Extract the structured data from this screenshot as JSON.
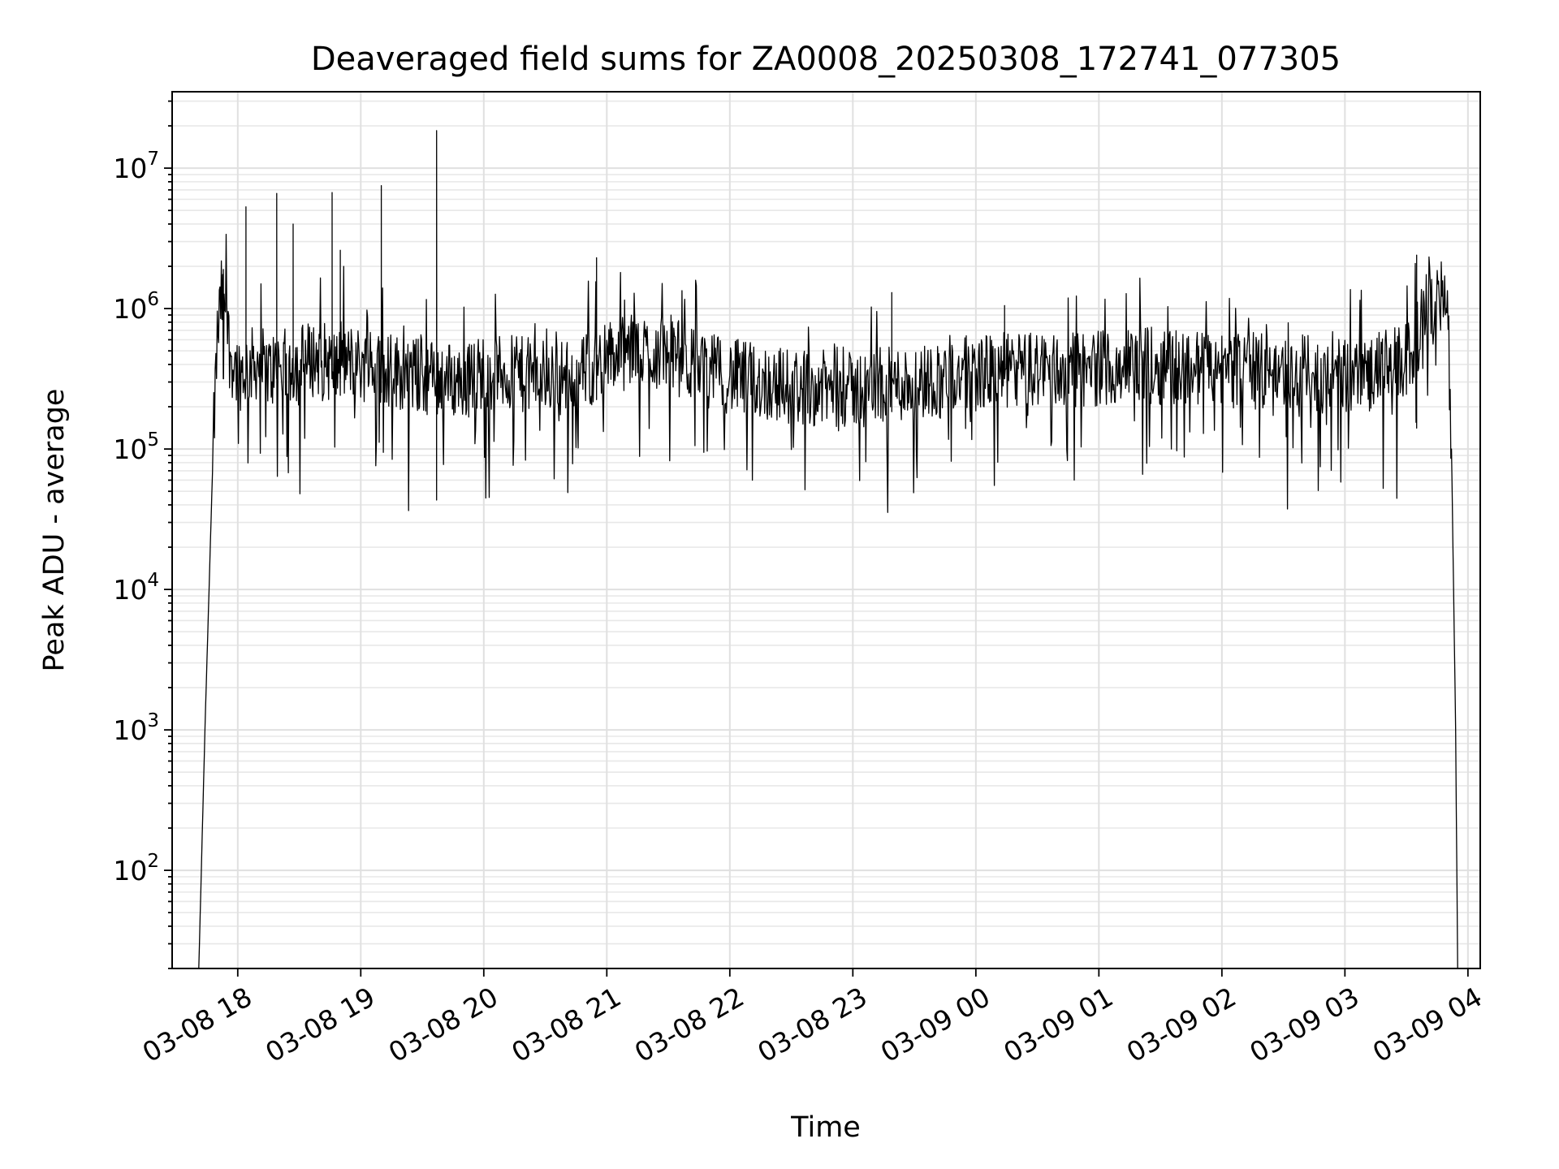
{
  "chart_data": {
    "type": "line",
    "title": "Deaveraged field sums for ZA0008_20250308_172741_077305",
    "xlabel": "Time",
    "ylabel": "Peak ADU - average",
    "x_scale": "time",
    "y_scale": "log",
    "xlim": [
      "2025-03-08 17:28",
      "2025-03-09 04:06"
    ],
    "ylim": [
      20,
      35000000
    ],
    "grid": true,
    "x_ticks": [
      "03-08 18",
      "03-08 19",
      "03-08 20",
      "03-08 21",
      "03-08 22",
      "03-08 23",
      "03-09 00",
      "03-09 01",
      "03-09 02",
      "03-09 03",
      "03-09 04"
    ],
    "y_ticks": [
      {
        "base": "10",
        "exp": "2",
        "value": 100
      },
      {
        "base": "10",
        "exp": "3",
        "value": 1000
      },
      {
        "base": "10",
        "exp": "4",
        "value": 10000
      },
      {
        "base": "10",
        "exp": "5",
        "value": 100000
      },
      {
        "base": "10",
        "exp": "6",
        "value": 1000000
      },
      {
        "base": "10",
        "exp": "7",
        "value": 10000000
      }
    ],
    "series": [
      {
        "color": "#000000",
        "x": [
          "2025-03-08 17:41",
          "2025-03-08 17:44",
          "2025-03-08 17:46",
          "2025-03-08 17:48",
          "2025-03-08 17:50",
          "2025-03-08 17:52",
          "2025-03-08 17:54",
          "2025-03-08 17:56",
          "2025-03-08 17:58",
          "2025-03-08 18:01",
          "2025-03-08 18:05",
          "2025-03-08 18:10",
          "2025-03-08 18:15",
          "2025-03-08 18:20",
          "2025-03-08 18:25",
          "2025-03-08 18:30",
          "2025-03-08 18:40",
          "2025-03-08 18:48",
          "2025-03-08 18:55",
          "2025-03-08 19:00",
          "2025-03-08 19:10",
          "2025-03-08 19:20",
          "2025-03-08 19:30",
          "2025-03-08 19:40",
          "2025-03-08 19:50",
          "2025-03-08 20:00",
          "2025-03-08 20:15",
          "2025-03-08 20:30",
          "2025-03-08 20:45",
          "2025-03-08 21:00",
          "2025-03-08 21:15",
          "2025-03-08 21:30",
          "2025-03-08 21:45",
          "2025-03-08 22:00",
          "2025-03-08 22:15",
          "2025-03-08 22:30",
          "2025-03-08 22:45",
          "2025-03-08 23:00",
          "2025-03-08 23:15",
          "2025-03-08 23:30",
          "2025-03-08 23:45",
          "2025-03-09 00:00",
          "2025-03-09 00:15",
          "2025-03-09 00:30",
          "2025-03-09 00:45",
          "2025-03-09 01:00",
          "2025-03-09 01:15",
          "2025-03-09 01:30",
          "2025-03-09 01:45",
          "2025-03-09 02:00",
          "2025-03-09 02:15",
          "2025-03-09 02:30",
          "2025-03-09 02:45",
          "2025-03-09 03:00",
          "2025-03-09 03:10",
          "2025-03-09 03:20",
          "2025-03-09 03:30",
          "2025-03-09 03:35",
          "2025-03-09 03:40",
          "2025-03-09 03:45",
          "2025-03-09 03:48",
          "2025-03-09 03:50",
          "2025-03-09 03:52",
          "2025-03-09 03:54",
          "2025-03-09 03:55"
        ],
        "y": [
          20,
          1000,
          10000,
          100000,
          600000,
          1200000,
          1100000,
          500000,
          400000,
          350000,
          380000,
          420000,
          350000,
          400000,
          380000,
          420000,
          450000,
          380000,
          420000,
          400000,
          380000,
          350000,
          330000,
          320000,
          300000,
          360000,
          340000,
          330000,
          320000,
          450000,
          500000,
          480000,
          380000,
          330000,
          300000,
          280000,
          270000,
          260000,
          280000,
          300000,
          320000,
          350000,
          360000,
          370000,
          360000,
          380000,
          400000,
          390000,
          380000,
          370000,
          360000,
          350000,
          340000,
          330000,
          340000,
          380000,
          420000,
          600000,
          1000000,
          1300000,
          1100000,
          800000,
          100000,
          1000,
          20
        ],
        "spikes": [
          {
            "x": "2025-03-08 17:53",
            "y": 1900000
          },
          {
            "x": "2025-03-08 18:04",
            "y": 5300000
          },
          {
            "x": "2025-03-08 18:19",
            "y": 6600000
          },
          {
            "x": "2025-03-08 18:27",
            "y": 4000000
          },
          {
            "x": "2025-03-08 18:46",
            "y": 6700000
          },
          {
            "x": "2025-03-08 18:50",
            "y": 2600000
          },
          {
            "x": "2025-03-08 19:10",
            "y": 7500000
          },
          {
            "x": "2025-03-08 19:37",
            "y": 18500000
          },
          {
            "x": "2025-03-08 20:55",
            "y": 2300000
          },
          {
            "x": "2025-03-08 23:19",
            "y": 1300000
          },
          {
            "x": "2025-03-09 00:14",
            "y": 1050000
          },
          {
            "x": "2025-03-09 03:35",
            "y": 2400000
          }
        ]
      }
    ]
  }
}
